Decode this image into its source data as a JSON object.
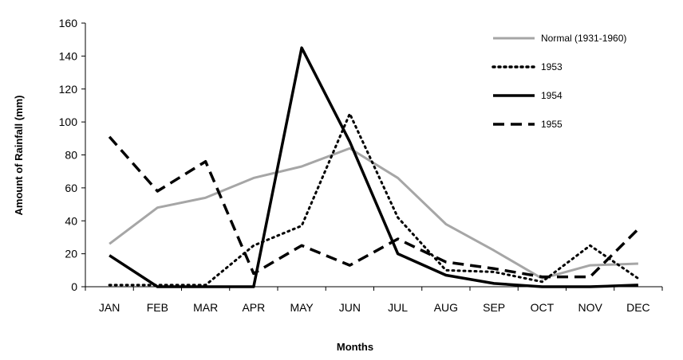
{
  "chart_data": {
    "type": "line",
    "title": "",
    "xlabel": "Months",
    "ylabel": "Amount of Rainfall (mm)",
    "categories": [
      "JAN",
      "FEB",
      "MAR",
      "APR",
      "MAY",
      "JUN",
      "JUL",
      "AUG",
      "SEP",
      "OCT",
      "NOV",
      "DEC"
    ],
    "ylim": [
      0,
      160
    ],
    "yticks": [
      0,
      20,
      40,
      60,
      80,
      100,
      120,
      140,
      160
    ],
    "grid": false,
    "legend_position": "top-right",
    "series": [
      {
        "name": "Normal (1931-1960)",
        "color": "#a6a6a6",
        "style": "solid",
        "values": [
          26,
          48,
          54,
          66,
          73,
          84,
          66,
          38,
          22,
          5,
          13,
          14
        ]
      },
      {
        "name": "1953",
        "color": "#000000",
        "style": "dotted",
        "values": [
          1,
          1,
          1,
          25,
          37,
          105,
          42,
          10,
          9,
          3,
          25,
          5
        ]
      },
      {
        "name": "1954",
        "color": "#000000",
        "style": "solid",
        "values": [
          19,
          0,
          0,
          0,
          145,
          88,
          20,
          7,
          2,
          0,
          0,
          1
        ]
      },
      {
        "name": "1955",
        "color": "#000000",
        "style": "dashed",
        "values": [
          91,
          58,
          76,
          8,
          25,
          13,
          29,
          15,
          11,
          6,
          6,
          35
        ]
      }
    ]
  }
}
